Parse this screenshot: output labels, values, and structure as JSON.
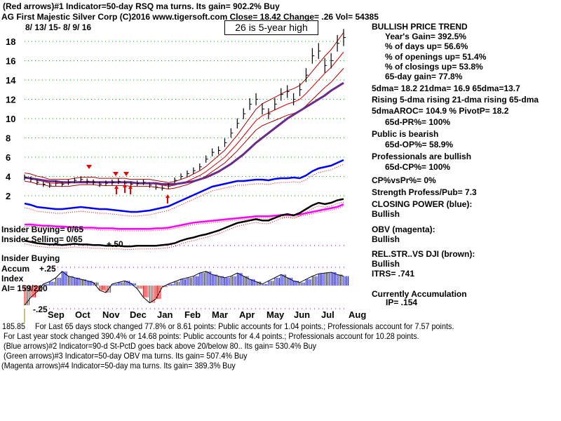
{
  "header": {
    "line1": "(Red arrows)#1 Indicator=50-day RSQ ma turns. Its gain= 902.2% Buy",
    "line2": "AG   First Majestic Silver Corp  (C)2016 www.tigersoft.com    Close=  18.42  Change= .26 Vol= 54385",
    "date_range": "8/ 13/ 15- 8/ 9/ 16",
    "high_note": "26 is 5-year high"
  },
  "side": {
    "trend": "BULLISH PRICE TREND",
    "year_gain": "Year's Gain= 392.5%",
    "days_up": "% of days up= 56.6%",
    "openings_up": "% of openings up= 51.4%",
    "closings_up": "% of closings up= 53.8%",
    "gain65": "65-day gain= 77.8%",
    "dma": "5dma= 18.2 21dma= 16.9 65dma=13.7",
    "rising": "Rising 5-dma rising 21-dma rising 65-dma",
    "aroc": "5dmaAROC= 104.9 %  PivotP= 18.2",
    "pr": "65d-PR%= 100%",
    "public": "Public is bearish",
    "op": "65d-OP%= 58.9%",
    "pros": "Professionals are bullish",
    "cp": "65d-CP%= 100%",
    "cpvspr": "CP%vsPr%=  0%",
    "strength": "Strength Profess/Pub= 7.3",
    "closing_power": "CLOSING POWER (blue):",
    "cp_state": "Bullish",
    "obv": "OBV (magenta):",
    "obv_state": "Bullish",
    "relstr": "REL.STR..VS DJI (brown):",
    "relstr_state": "Bullish",
    "itrs": "ITRS= .741",
    "accum": "Currently Accumulation",
    "ip": "IP=  .154"
  },
  "left_labels": {
    "insider_buying": "Insider Buying= 0/65",
    "insider_selling": "Insider Selling= 0/65",
    "plus50": "+.50",
    "insider_buying2": "Insider Buying",
    "accum": "Accum",
    "plus25": "+.25",
    "index": "Index",
    "ai": "AI= 159/200",
    "minus25": "-.25"
  },
  "footer": {
    "l1": "For Last 65 days stock changed  77.8% or  8.61 points:  Public accounts for  1.04 points.;  Professionals account for  7.57 points.",
    "l1_overlap": "185.85",
    "l2": "For Last year stock changed  390.4% or  14.68 points:  Public accounts for  4.4 points.;  Professionals account for  10.28 points.",
    "l3": "(Blue arrows)#2 Indicator=90-d St-PctD goes back above 20/below 80.. Its gain= 530.4% Buy",
    "l4": "(Green arrows)#3 Indicator=50-day OBV ma turns. Its gain= 507.4% Buy",
    "l5": "(Magenta arrows)#4 Indicator=50-day ma turns. Its gain= 389.3% Buy"
  },
  "chart_data": {
    "type": "line",
    "title": "AG First Majestic Silver Corp",
    "months": [
      "Sep",
      "Oct",
      "Nov",
      "Dec",
      "Jan",
      "Feb",
      "Mar",
      "Apr",
      "May",
      "Jun",
      "Jul",
      "Aug"
    ],
    "y_ticks": [
      2,
      4,
      6,
      8,
      10,
      12,
      14,
      16,
      18
    ],
    "ylim": [
      0.5,
      19.5
    ],
    "price": [
      3.9,
      3.7,
      3.4,
      3.2,
      3.1,
      3.3,
      3.2,
      3.4,
      3.6,
      3.7,
      3.5,
      3.4,
      3.2,
      3.3,
      3.4,
      3.5,
      3.3,
      3.2,
      3.3,
      3.4,
      3.1,
      2.9,
      2.8,
      3.0,
      3.6,
      4.0,
      4.3,
      4.6,
      5.0,
      5.8,
      6.5,
      6.7,
      7.5,
      8.5,
      9.5,
      10.5,
      11.5,
      12.0,
      11.0,
      10.5,
      11.5,
      12.5,
      12.8,
      12.0,
      13.0,
      14.5,
      16.5,
      17.0,
      15.5,
      16.0,
      17.8,
      18.4
    ],
    "ma65": [
      3.9,
      3.8,
      3.7,
      3.6,
      3.5,
      3.5,
      3.4,
      3.4,
      3.4,
      3.4,
      3.4,
      3.4,
      3.4,
      3.4,
      3.4,
      3.4,
      3.4,
      3.4,
      3.3,
      3.3,
      3.3,
      3.3,
      3.2,
      3.2,
      3.2,
      3.3,
      3.4,
      3.5,
      3.7,
      3.9,
      4.2,
      4.5,
      4.9,
      5.3,
      5.8,
      6.3,
      6.9,
      7.5,
      8.0,
      8.5,
      9.0,
      9.5,
      10.0,
      10.4,
      10.8,
      11.2,
      11.6,
      12.0,
      12.4,
      12.9,
      13.3,
      13.7
    ],
    "ma21": [
      3.9,
      3.8,
      3.6,
      3.5,
      3.3,
      3.3,
      3.3,
      3.3,
      3.4,
      3.5,
      3.5,
      3.5,
      3.4,
      3.4,
      3.4,
      3.4,
      3.4,
      3.3,
      3.3,
      3.3,
      3.3,
      3.2,
      3.1,
      3.0,
      3.1,
      3.3,
      3.5,
      3.8,
      4.1,
      4.5,
      5.0,
      5.5,
      6.0,
      6.7,
      7.4,
      8.2,
      9.0,
      9.8,
      10.3,
      10.6,
      10.9,
      11.2,
      11.5,
      11.7,
      12.0,
      12.6,
      13.3,
      14.0,
      14.7,
      15.3,
      16.1,
      16.9
    ],
    "closing_power_blue": [
      30,
      28,
      25,
      24,
      23,
      22,
      22,
      23,
      24,
      25,
      24,
      23,
      22,
      22,
      21,
      20,
      19,
      18,
      18,
      19,
      20,
      22,
      24,
      26,
      30,
      34,
      38,
      42,
      46,
      50,
      54,
      56,
      58,
      60,
      62,
      62,
      63,
      64,
      64,
      63,
      65,
      66,
      66,
      67,
      66,
      70,
      76,
      80,
      82,
      84,
      88,
      92
    ],
    "obv_magenta": [
      20,
      20,
      19,
      18,
      18,
      17,
      17,
      16,
      16,
      15,
      15,
      15,
      14,
      14,
      14,
      13,
      13,
      13,
      13,
      13,
      13,
      14,
      14,
      15,
      17,
      19,
      21,
      23,
      24,
      25,
      26,
      27,
      28,
      29,
      30,
      31,
      32,
      33,
      33,
      33,
      34,
      35,
      35,
      35,
      36,
      38,
      40,
      42,
      44,
      46,
      48,
      52
    ],
    "relstr_black": [
      30,
      28,
      26,
      25,
      24,
      24,
      23,
      24,
      25,
      24,
      24,
      23,
      23,
      22,
      22,
      22,
      21,
      21,
      22,
      22,
      22,
      22,
      23,
      24,
      26,
      30,
      33,
      35,
      38,
      40,
      43,
      46,
      50,
      54,
      58,
      60,
      62,
      64,
      62,
      62,
      66,
      70,
      72,
      70,
      74,
      80,
      86,
      90,
      88,
      90,
      94,
      96
    ],
    "accum_index": [
      -0.25,
      -0.15,
      -0.08,
      0.02,
      0.05,
      0.1,
      0.18,
      0.12,
      0.1,
      0.08,
      0.06,
      0.04,
      -0.06,
      -0.09,
      0.02,
      0.04,
      0.06,
      0.03,
      -0.04,
      -0.15,
      -0.22,
      -0.17,
      -0.02,
      0.02,
      0.05,
      0.08,
      0.1,
      0.12,
      0.16,
      0.18,
      0.14,
      0.12,
      0.1,
      0.12,
      0.16,
      0.12,
      0.08,
      0.05,
      0.02,
      0.06,
      0.1,
      0.14,
      0.1,
      0.06,
      0.04,
      0.08,
      0.12,
      0.15,
      0.16,
      0.17,
      0.14,
      0.12
    ]
  }
}
